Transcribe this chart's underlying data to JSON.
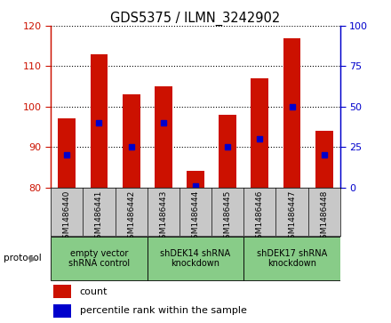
{
  "title": "GDS5375 / ILMN_3242902",
  "samples": [
    "GSM1486440",
    "GSM1486441",
    "GSM1486442",
    "GSM1486443",
    "GSM1486444",
    "GSM1486445",
    "GSM1486446",
    "GSM1486447",
    "GSM1486448"
  ],
  "counts": [
    97,
    113,
    103,
    105,
    84,
    98,
    107,
    117,
    94
  ],
  "percentiles": [
    20,
    40,
    25,
    40,
    1,
    25,
    30,
    50,
    20
  ],
  "ylim_left": [
    80,
    120
  ],
  "ylim_right": [
    0,
    100
  ],
  "yticks_left": [
    80,
    90,
    100,
    110,
    120
  ],
  "yticks_right": [
    0,
    25,
    50,
    75,
    100
  ],
  "bar_color": "#cc1100",
  "dot_color": "#0000cc",
  "bg_plot": "#ffffff",
  "bg_label": "#c8c8c8",
  "protocol_groups": [
    {
      "label": "empty vector\nshRNA control",
      "start": 0,
      "end": 3,
      "color": "#88cc88"
    },
    {
      "label": "shDEK14 shRNA\nknockdown",
      "start": 3,
      "end": 6,
      "color": "#88cc88"
    },
    {
      "label": "shDEK17 shRNA\nknockdown",
      "start": 6,
      "end": 9,
      "color": "#88cc88"
    }
  ],
  "legend_items": [
    {
      "label": "count",
      "color": "#cc1100"
    },
    {
      "label": "percentile rank within the sample",
      "color": "#0000cc"
    }
  ],
  "protocol_label": "protocol",
  "bar_width": 0.55
}
